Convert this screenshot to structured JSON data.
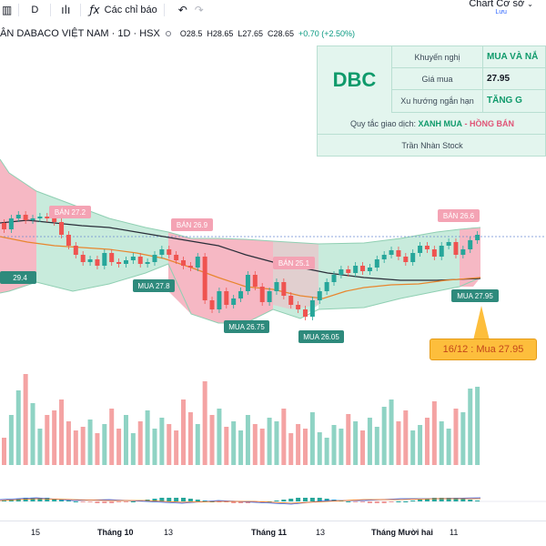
{
  "toolbar": {
    "timeframe": "D",
    "indicators_label": "Các chỉ báo",
    "chart_base_label": "Chart Cơ sở",
    "chart_base_sub": "Lưu"
  },
  "symbol": {
    "name": "ÂN DABACO VIỆT NAM · 1D · HSX",
    "open": "O28.5",
    "high": "H28.65",
    "low": "L27.65",
    "close": "C28.65",
    "change": "+0.70 (+2.50%)"
  },
  "info_panel": {
    "ticker": "DBC",
    "recommendation_label": "Khuyến nghị",
    "recommendation_value": "MUA VÀ NẮ",
    "buy_price_label": "Giá mua",
    "buy_price_value": "27.95",
    "trend_label": "Xu hướng ngắn hạn",
    "trend_value": "TĂNG G",
    "rule_prefix": "Quy tắc giao dịch:",
    "rule_buy": "XANH MUA",
    "rule_dash": "-",
    "rule_sell": "HỒNG BÁN",
    "author": "Trần Nhàn Stock"
  },
  "signals": {
    "sell_1": "BÁN 27.2",
    "sell_2": "BÁN 26.9",
    "sell_3": "BÁN 25.1",
    "sell_4": "BÁN 26.6",
    "buy_1": "29.4",
    "buy_2": "MUA 27.8",
    "buy_3": "MUA 26.75",
    "buy_4": "MUA 26.05",
    "buy_5": "MUA 27.95"
  },
  "callout": "16/12 : Mua 27.95",
  "timeline": [
    "15",
    "Tháng 10",
    "13",
    "Tháng 11",
    "13",
    "Tháng Mười hai",
    "11"
  ],
  "colors": {
    "up": "#26a69a",
    "down": "#ef5350",
    "buy_zone": "#c8ebdc",
    "sell_zone": "#f6b8c4",
    "ma_orange": "#e8862e",
    "ma_black": "#2a2e39"
  }
}
